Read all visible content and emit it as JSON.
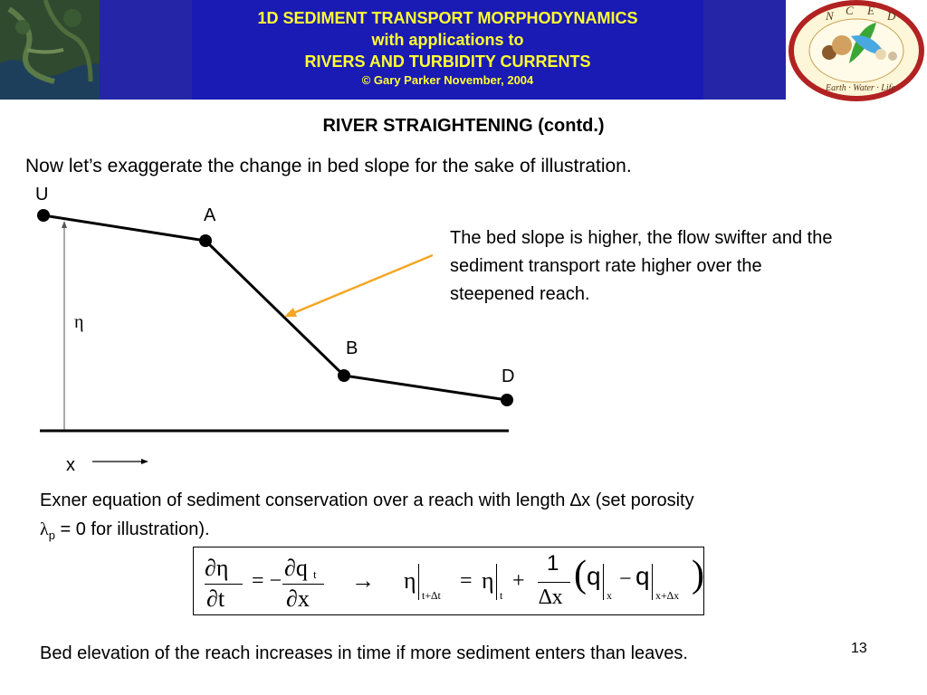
{
  "header": {
    "line1": "1D SEDIMENT TRANSPORT MORPHODYNAMICS",
    "line2": "with applications to",
    "line3": "RIVERS AND TURBIDITY CURRENTS",
    "copyright": "© Gary Parker November, 2004"
  },
  "logo": {
    "letters": [
      "N",
      "C",
      "E",
      "D"
    ],
    "ring_text": "Earth · Water · Life"
  },
  "title": "RIVER STRAIGHTENING (contd.)",
  "intro": "Now let’s exaggerate the change in bed slope for the sake of illustration.",
  "diagram": {
    "labels": {
      "U": "U",
      "A": "A",
      "B": "B",
      "D": "D",
      "eta": "η",
      "x": "x"
    },
    "colors": {
      "arrow": "#f5a623",
      "profile": "#000000"
    }
  },
  "note": "The bed slope is higher, the flow swifter and the sediment transport rate higher over the steepened reach.",
  "exner": {
    "text": "Exner equation of sediment conservation over a reach with length ∆x (set porosity",
    "lambda": "λ",
    "sub": "p",
    "rest": " = 0 for illustration)."
  },
  "equation": {
    "d_eta": "∂η",
    "eq_minus": "= −",
    "d_q": "∂q",
    "q_sub": "t",
    "d_t": "∂t",
    "d_x": "∂x",
    "arrow": "→",
    "eta": "η",
    "sub_tdt": "t+∆t",
    "equals": "=",
    "sub_t": "t",
    "plus": "+",
    "one": "1",
    "dx": "∆x",
    "q": "q",
    "sub_x": "x",
    "minus": "−",
    "sub_xdx": "x+∆x"
  },
  "bottom_text": "Bed elevation of the reach increases in time if more sediment enters than leaves.",
  "page_number": "13"
}
